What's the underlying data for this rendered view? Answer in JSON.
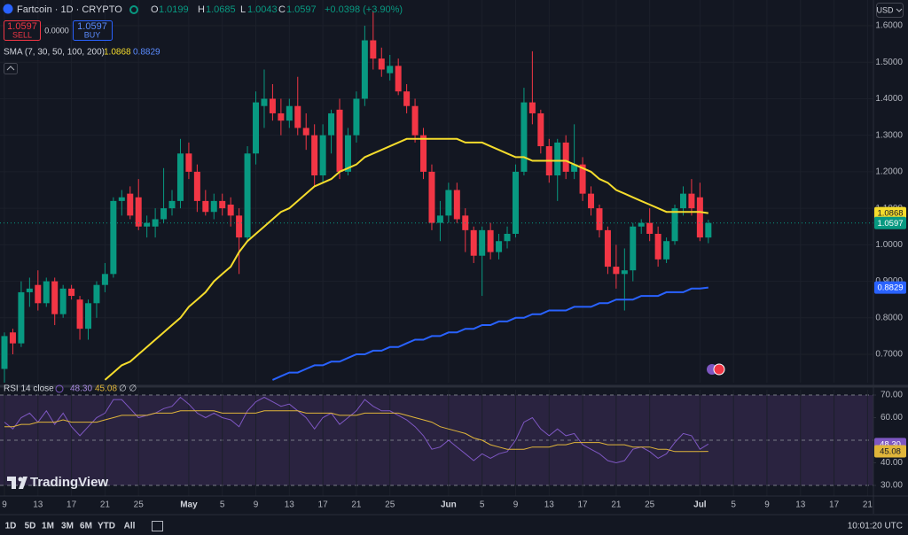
{
  "header": {
    "symbol": "Fartcoin · 1D · CRYPTO",
    "o": "O",
    "h": "H",
    "l": "L",
    "c": "C",
    "change": "+0.0398 (+3.90%)",
    "sell": "SELL",
    "buy": "BUY",
    "spread": "0.0000",
    "sma": "SMA (7, 30, 50, 100, 200)",
    "currency": "USD",
    "brand": "TradingView"
  },
  "toolbar": {
    "ranges": [
      "1D",
      "5D",
      "1M",
      "3M",
      "6M",
      "YTD",
      "All"
    ],
    "time": "10:01:20 UTC"
  },
  "chart_data": [
    {
      "type": "candlestick",
      "up_color": "#089981",
      "down_color": "#f23645",
      "xlim": [
        -0.53,
        103.7
      ],
      "xticks": [
        {
          "value": 0,
          "label": "9"
        },
        {
          "value": 4,
          "label": "13"
        },
        {
          "value": 8,
          "label": "17"
        },
        {
          "value": 12,
          "label": "21"
        },
        {
          "value": 16,
          "label": "25"
        },
        {
          "value": 22,
          "label": "May"
        },
        {
          "value": 26,
          "label": "5"
        },
        {
          "value": 30,
          "label": "9"
        },
        {
          "value": 34,
          "label": "13"
        },
        {
          "value": 38,
          "label": "17"
        },
        {
          "value": 42,
          "label": "21"
        },
        {
          "value": 46,
          "label": "25"
        },
        {
          "value": 53,
          "label": "Jun"
        },
        {
          "value": 57,
          "label": "5"
        },
        {
          "value": 61,
          "label": "9"
        },
        {
          "value": 65,
          "label": "13"
        },
        {
          "value": 69,
          "label": "17"
        },
        {
          "value": 73,
          "label": "21"
        },
        {
          "value": 77,
          "label": "25"
        },
        {
          "value": 83,
          "label": "Jul"
        },
        {
          "value": 87,
          "label": "5"
        },
        {
          "value": 91,
          "label": "9"
        },
        {
          "value": 95,
          "label": "13"
        },
        {
          "value": 99,
          "label": "17"
        },
        {
          "value": 103,
          "label": "21"
        }
      ],
      "ylim": [
        0.6224,
        1.6704
      ],
      "yticks": [
        {
          "value": 0.7,
          "label": "0.7000"
        },
        {
          "value": 0.8,
          "label": "0.8000"
        },
        {
          "value": 0.9,
          "label": "0.9000"
        },
        {
          "value": 1.0,
          "label": "1.0000"
        },
        {
          "value": 1.1,
          "label": "1.1000"
        },
        {
          "value": 1.2,
          "label": "1.2000"
        },
        {
          "value": 1.3,
          "label": "1.3000"
        },
        {
          "value": 1.4,
          "label": "1.4000"
        },
        {
          "value": 1.5,
          "label": "1.5000"
        },
        {
          "value": 1.6,
          "label": "1.6000"
        }
      ],
      "grid": true,
      "open": [
        0.66,
        0.76,
        0.73,
        0.87,
        0.89,
        0.84,
        0.9,
        0.81,
        0.88,
        0.85,
        0.77,
        0.84,
        0.89,
        0.92,
        1.12,
        1.14,
        1.13,
        1.05,
        1.05,
        1.07,
        1.1,
        1.12,
        1.25,
        1.2,
        1.12,
        1.09,
        1.12,
        1.11,
        1.08,
        1.02,
        1.25,
        1.38,
        1.4,
        1.36,
        1.34,
        1.38,
        1.32,
        1.3,
        1.19,
        1.3,
        1.37,
        1.2,
        1.3,
        1.4,
        1.56,
        1.51,
        1.47,
        1.49,
        1.42,
        1.38,
        1.3,
        1.2,
        1.06,
        1.08,
        1.15,
        1.08,
        1.04,
        0.97,
        1.04,
        0.98,
        1.01,
        1.03,
        1.2,
        1.39,
        1.36,
        1.27,
        1.19,
        1.28,
        1.2,
        1.22,
        1.14,
        1.1,
        1.04,
        0.94,
        0.92,
        0.93,
        1.05,
        1.06,
        1.03,
        0.96,
        1.01,
        1.1,
        1.14,
        1.13,
        1.0199
      ],
      "high": [
        0.76,
        0.77,
        0.9,
        0.91,
        0.93,
        0.91,
        0.91,
        0.89,
        0.89,
        0.86,
        0.85,
        0.9,
        0.95,
        1.13,
        1.15,
        1.16,
        1.18,
        1.08,
        1.1,
        1.21,
        1.15,
        1.29,
        1.28,
        1.22,
        1.15,
        1.14,
        1.14,
        1.13,
        1.1,
        1.27,
        1.42,
        1.48,
        1.44,
        1.4,
        1.4,
        1.46,
        1.36,
        1.33,
        1.33,
        1.37,
        1.4,
        1.32,
        1.42,
        1.6,
        1.64,
        1.54,
        1.52,
        1.51,
        1.44,
        1.4,
        1.32,
        1.22,
        1.12,
        1.17,
        1.17,
        1.1,
        1.05,
        1.05,
        1.06,
        1.03,
        1.05,
        1.22,
        1.43,
        1.53,
        1.37,
        1.29,
        1.29,
        1.3,
        1.33,
        1.24,
        1.16,
        1.11,
        1.05,
        1.0,
        0.99,
        1.06,
        1.07,
        1.1,
        1.05,
        1.02,
        1.11,
        1.16,
        1.18,
        1.17,
        1.0685
      ],
      "low": [
        0.62,
        0.7,
        0.72,
        0.83,
        0.82,
        0.83,
        0.78,
        0.8,
        0.85,
        0.74,
        0.74,
        0.8,
        0.87,
        0.91,
        1.08,
        1.07,
        1.04,
        1.02,
        1.02,
        1.06,
        1.08,
        1.1,
        1.18,
        1.09,
        1.08,
        1.07,
        1.08,
        1.05,
        0.92,
        1.01,
        1.22,
        1.32,
        1.34,
        1.3,
        1.32,
        1.3,
        1.26,
        1.16,
        1.17,
        1.25,
        1.18,
        1.19,
        1.28,
        1.38,
        1.48,
        1.46,
        1.45,
        1.41,
        1.36,
        1.28,
        1.18,
        1.04,
        1.01,
        1.06,
        1.06,
        0.98,
        0.95,
        0.86,
        0.96,
        0.96,
        0.99,
        1.02,
        1.19,
        1.33,
        1.25,
        1.17,
        1.12,
        1.18,
        1.18,
        1.12,
        1.08,
        1.02,
        0.92,
        0.88,
        0.82,
        0.9,
        1.03,
        1.01,
        0.94,
        0.95,
        1.0,
        1.08,
        1.08,
        1.01,
        1.0043
      ],
      "close": [
        0.75,
        0.73,
        0.87,
        0.88,
        0.84,
        0.9,
        0.81,
        0.88,
        0.86,
        0.77,
        0.84,
        0.89,
        0.92,
        1.12,
        1.13,
        1.08,
        1.05,
        1.06,
        1.07,
        1.1,
        1.12,
        1.25,
        1.2,
        1.12,
        1.09,
        1.12,
        1.1,
        1.08,
        1.02,
        1.25,
        1.39,
        1.4,
        1.36,
        1.34,
        1.38,
        1.32,
        1.3,
        1.19,
        1.3,
        1.36,
        1.2,
        1.3,
        1.4,
        1.56,
        1.51,
        1.48,
        1.49,
        1.42,
        1.38,
        1.3,
        1.2,
        1.06,
        1.08,
        1.15,
        1.07,
        1.04,
        0.97,
        1.04,
        0.98,
        1.01,
        1.03,
        1.2,
        1.39,
        1.36,
        1.27,
        1.19,
        1.28,
        1.2,
        1.22,
        1.14,
        1.1,
        1.04,
        0.94,
        0.92,
        0.93,
        1.05,
        1.06,
        1.03,
        0.96,
        1.01,
        1.1,
        1.14,
        1.1,
        1.02,
        1.0597
      ],
      "lines": [
        {
          "color": "#f5dc2c",
          "values": [
            null,
            null,
            null,
            null,
            null,
            null,
            null,
            null,
            null,
            null,
            null,
            null,
            0.63,
            0.65,
            0.67,
            0.68,
            0.7,
            0.72,
            0.74,
            0.76,
            0.78,
            0.8,
            0.83,
            0.85,
            0.87,
            0.9,
            0.92,
            0.94,
            0.98,
            1.01,
            1.03,
            1.05,
            1.07,
            1.09,
            1.1,
            1.12,
            1.14,
            1.16,
            1.17,
            1.18,
            1.2,
            1.21,
            1.22,
            1.24,
            1.25,
            1.26,
            1.27,
            1.28,
            1.29,
            1.29,
            1.29,
            1.29,
            1.29,
            1.29,
            1.29,
            1.28,
            1.28,
            1.28,
            1.27,
            1.26,
            1.25,
            1.24,
            1.24,
            1.23,
            1.23,
            1.23,
            1.23,
            1.23,
            1.22,
            1.21,
            1.2,
            1.18,
            1.17,
            1.15,
            1.14,
            1.13,
            1.12,
            1.11,
            1.1,
            1.09,
            1.09,
            1.09,
            1.09,
            1.09,
            1.0868
          ]
        },
        {
          "color": "#2962ff",
          "values": [
            null,
            null,
            null,
            null,
            null,
            null,
            null,
            null,
            null,
            null,
            null,
            null,
            null,
            null,
            null,
            null,
            null,
            null,
            null,
            null,
            null,
            null,
            null,
            null,
            null,
            null,
            null,
            null,
            null,
            null,
            null,
            null,
            0.63,
            0.64,
            0.65,
            0.65,
            0.66,
            0.67,
            0.67,
            0.68,
            0.68,
            0.69,
            0.7,
            0.7,
            0.71,
            0.71,
            0.72,
            0.72,
            0.73,
            0.74,
            0.74,
            0.75,
            0.75,
            0.76,
            0.76,
            0.77,
            0.77,
            0.78,
            0.78,
            0.79,
            0.79,
            0.8,
            0.8,
            0.81,
            0.81,
            0.82,
            0.82,
            0.82,
            0.83,
            0.83,
            0.83,
            0.84,
            0.84,
            0.85,
            0.85,
            0.85,
            0.86,
            0.86,
            0.86,
            0.87,
            0.87,
            0.87,
            0.88,
            0.88,
            0.8829
          ]
        }
      ]
    },
    {
      "type": "line",
      "title": "RSI 14 close",
      "legend_note": "∅ ∅",
      "ylim": [
        25.3,
        72.35
      ],
      "yticks": [
        {
          "value": 70,
          "label": "70.00"
        },
        {
          "value": 60,
          "label": "60.00"
        },
        {
          "value": 40,
          "label": "40.00"
        },
        {
          "value": 30,
          "label": "30.00"
        }
      ],
      "levels": [
        70,
        50,
        30
      ],
      "band_color": "#2a2340",
      "series": [
        {
          "color": "#7e57c2",
          "values": [
            58,
            55,
            60,
            62,
            58,
            63,
            57,
            62,
            56,
            52,
            56,
            60,
            62,
            68,
            68,
            64,
            60,
            61,
            62,
            64,
            65,
            69,
            66,
            62,
            60,
            62,
            60,
            59,
            56,
            63,
            67,
            69,
            67,
            65,
            66,
            63,
            60,
            55,
            60,
            62,
            57,
            60,
            63,
            68,
            65,
            63,
            63,
            61,
            59,
            56,
            52,
            46,
            47,
            50,
            47,
            44,
            41,
            44,
            42,
            44,
            45,
            50,
            58,
            60,
            55,
            52,
            55,
            52,
            53,
            48,
            46,
            44,
            41,
            40,
            41,
            46,
            47,
            45,
            42,
            44,
            49,
            53,
            52,
            46,
            48.3
          ],
          "value_labels": [
            null,
            null,
            null,
            null,
            null,
            null,
            null,
            null,
            null,
            null,
            null,
            null,
            null,
            null,
            null,
            null,
            null,
            null,
            null,
            null,
            null,
            null,
            null,
            null,
            null,
            null,
            null,
            null,
            null,
            null,
            null,
            null,
            null,
            null,
            null,
            null,
            null,
            null,
            null,
            null,
            null,
            null,
            null,
            null,
            null,
            null,
            null,
            null,
            null,
            null,
            null,
            null,
            null,
            null,
            null,
            null,
            null,
            null,
            null,
            null,
            null,
            null,
            null,
            null,
            null,
            null,
            null,
            null,
            null,
            null,
            null,
            null,
            null,
            null,
            null,
            null,
            null,
            null,
            null,
            null,
            null,
            null,
            null,
            null,
            "48.30"
          ]
        },
        {
          "color": "#e0b53a",
          "values": [
            56,
            56,
            57,
            57,
            58,
            58,
            58,
            59,
            58,
            58,
            58,
            58,
            59,
            60,
            61,
            61,
            61,
            61,
            62,
            62,
            62,
            63,
            63,
            63,
            63,
            63,
            62,
            62,
            62,
            62,
            62,
            63,
            63,
            63,
            63,
            63,
            62,
            62,
            62,
            62,
            61,
            61,
            61,
            62,
            62,
            62,
            62,
            62,
            61,
            60,
            59,
            58,
            56,
            55,
            54,
            53,
            51,
            50,
            48,
            47,
            46,
            46,
            46,
            47,
            47,
            47,
            48,
            48,
            49,
            49,
            49,
            49,
            48,
            48,
            48,
            47,
            47,
            47,
            46,
            46,
            45,
            45,
            45,
            45,
            45.08
          ]
        }
      ]
    }
  ]
}
